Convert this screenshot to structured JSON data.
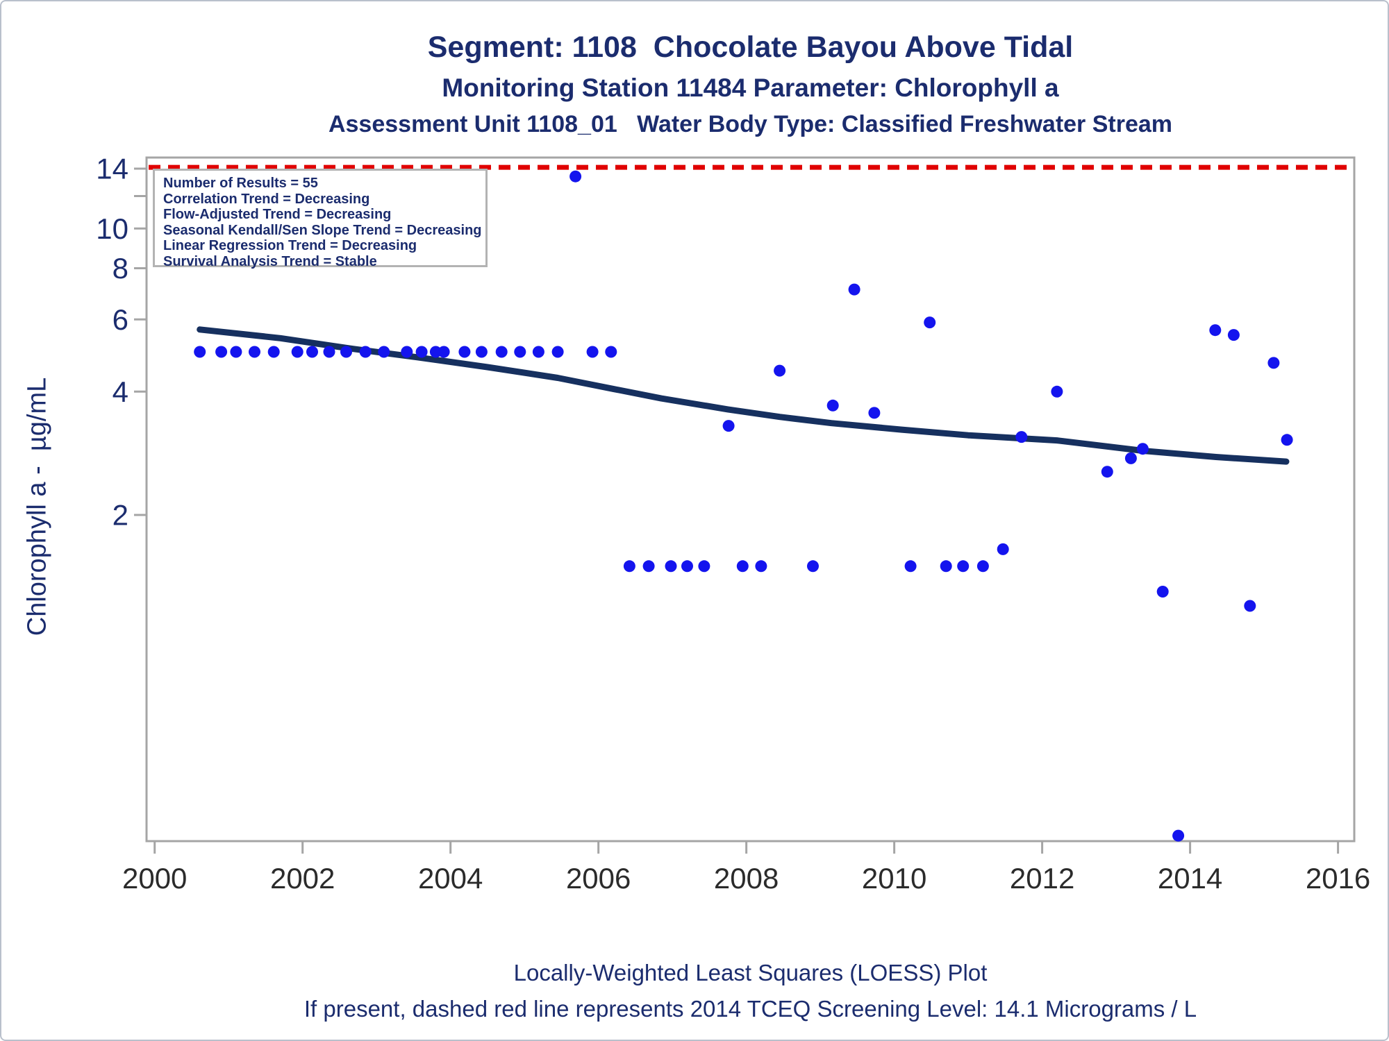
{
  "header": {
    "title1": "Segment: 1108  Chocolate Bayou Above Tidal",
    "title2": "Monitoring Station 11484 Parameter: Chlorophyll a",
    "title3": "Assessment Unit 1108_01   Water Body Type: Classified Freshwater Stream"
  },
  "stats_box": {
    "lines": [
      "Number of Results = 55",
      "Correlation Trend = Decreasing",
      "Flow-Adjusted Trend = Decreasing",
      "Seasonal Kendall/Sen Slope Trend = Decreasing",
      "Linear Regression Trend = Decreasing",
      "Survival Analysis Trend = Stable"
    ]
  },
  "y_axis_title": "Chlorophyll a -  µg/mL",
  "footer": {
    "line1": "Locally-Weighted Least Squares (LOESS) Plot",
    "line2": "If present, dashed red line represents 2014 TCEQ Screening Level: 14.1 Micrograms / L"
  },
  "colors": {
    "title_navy": "#1b2c6e",
    "loess_navy": "#16305f",
    "point_blue": "#1414ee",
    "screening_red": "#e00000",
    "axis_gray": "#a5a5a5",
    "x_label_color": "#2b2b2b",
    "y_label_color": "#1b2c6e",
    "stats_border": "#b3b3b3"
  },
  "chart_data": {
    "type": "scatter",
    "title": "Segment: 1108  Chocolate Bayou Above Tidal",
    "subtitle": "Monitoring Station 11484 Parameter: Chlorophyll a",
    "xlabel": "",
    "ylabel": "Chlorophyll a -  µg/mL",
    "x_axis": {
      "ticks": [
        2000,
        2002,
        2004,
        2006,
        2008,
        2010,
        2012,
        2014,
        2016
      ],
      "range": [
        1999.89,
        2016.22
      ]
    },
    "y_axis": {
      "scale": "log",
      "range": [
        0.32,
        14.9
      ],
      "ticks": [
        {
          "value": 14,
          "label": "14"
        },
        {
          "value": 12,
          "label": ""
        },
        {
          "value": 10,
          "label": "10"
        },
        {
          "value": 8,
          "label": "8"
        },
        {
          "value": 6,
          "label": "6"
        },
        {
          "value": 4,
          "label": "4"
        },
        {
          "value": 2,
          "label": "2"
        }
      ]
    },
    "screening_level": 14.1,
    "points": [
      [
        2000.61,
        5
      ],
      [
        2000.9,
        5
      ],
      [
        2001.1,
        5
      ],
      [
        2001.35,
        5
      ],
      [
        2001.61,
        5
      ],
      [
        2001.93,
        5
      ],
      [
        2002.13,
        5
      ],
      [
        2002.36,
        5
      ],
      [
        2002.59,
        5
      ],
      [
        2002.85,
        5
      ],
      [
        2003.1,
        5
      ],
      [
        2003.41,
        5
      ],
      [
        2003.61,
        5
      ],
      [
        2003.8,
        5
      ],
      [
        2003.91,
        5
      ],
      [
        2004.19,
        5
      ],
      [
        2004.42,
        5
      ],
      [
        2004.69,
        5
      ],
      [
        2004.94,
        5
      ],
      [
        2005.19,
        5
      ],
      [
        2005.45,
        5
      ],
      [
        2005.92,
        5
      ],
      [
        2006.17,
        5
      ],
      [
        2005.69,
        13.4
      ],
      [
        2006.42,
        1.5
      ],
      [
        2006.68,
        1.5
      ],
      [
        2006.98,
        1.5
      ],
      [
        2007.2,
        1.5
      ],
      [
        2007.43,
        1.5
      ],
      [
        2007.95,
        1.5
      ],
      [
        2008.2,
        1.5
      ],
      [
        2008.9,
        1.5
      ],
      [
        2010.22,
        1.5
      ],
      [
        2010.7,
        1.5
      ],
      [
        2010.93,
        1.5
      ],
      [
        2011.2,
        1.5
      ],
      [
        2007.76,
        3.3
      ],
      [
        2008.45,
        4.5
      ],
      [
        2009.17,
        3.7
      ],
      [
        2009.46,
        7.1
      ],
      [
        2009.73,
        3.55
      ],
      [
        2010.48,
        5.9
      ],
      [
        2011.47,
        1.65
      ],
      [
        2011.72,
        3.1
      ],
      [
        2012.2,
        4.0
      ],
      [
        2012.88,
        2.55
      ],
      [
        2013.2,
        2.75
      ],
      [
        2013.36,
        2.9
      ],
      [
        2013.63,
        1.3
      ],
      [
        2013.84,
        0.33
      ],
      [
        2014.34,
        5.65
      ],
      [
        2014.59,
        5.5
      ],
      [
        2014.81,
        1.2
      ],
      [
        2015.13,
        4.7
      ],
      [
        2015.31,
        3.05
      ]
    ],
    "loess_line": [
      [
        2000.61,
        5.67
      ],
      [
        2001.7,
        5.4
      ],
      [
        2002.6,
        5.11
      ],
      [
        2003.55,
        4.85
      ],
      [
        2004.5,
        4.59
      ],
      [
        2005.45,
        4.32
      ],
      [
        2006.2,
        4.06
      ],
      [
        2006.85,
        3.85
      ],
      [
        2007.75,
        3.62
      ],
      [
        2008.45,
        3.47
      ],
      [
        2009.15,
        3.35
      ],
      [
        2010.1,
        3.23
      ],
      [
        2011.0,
        3.13
      ],
      [
        2012.2,
        3.04
      ],
      [
        2013.35,
        2.87
      ],
      [
        2014.35,
        2.77
      ],
      [
        2015.3,
        2.7
      ]
    ],
    "legend_position": "none",
    "grid": false
  }
}
